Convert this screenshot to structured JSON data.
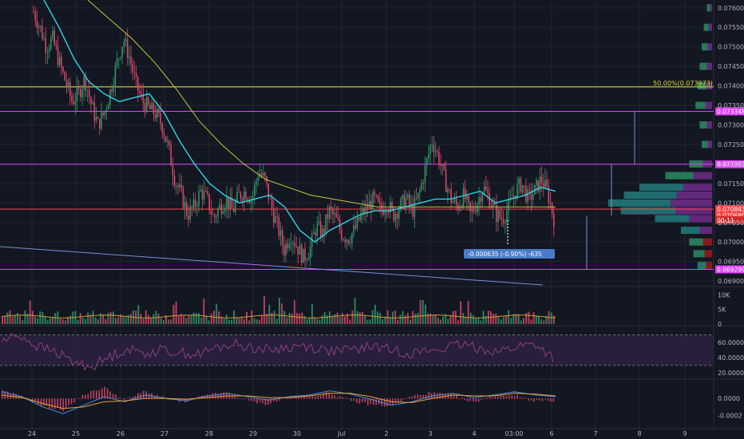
{
  "colors": {
    "background": "#131722",
    "grid": "#1f2433",
    "up": "#2f9c6a",
    "down": "#e0486a",
    "ma_fast": "#2fd4e8",
    "ma_slow": "#c8c63a",
    "magenta": "#e040fb",
    "red_line": "#ff4040",
    "yellow_line": "#e6e64a",
    "trend": "#7b8fd6",
    "rsi_line": "#8d3f86",
    "rsi_band": "#2e2241",
    "macd_line": "#4a90e2",
    "signal_line": "#f0a030",
    "hist": "#e0486a",
    "volume_ma": "#c8a030",
    "measure_box": "#4a7bc8"
  },
  "chart_data": [
    {
      "type": "candlestick",
      "pane": "price",
      "x_tick_labels": [
        "24",
        "25",
        "26",
        "27",
        "28",
        "29",
        "30",
        "Jul",
        "2",
        "3",
        "4",
        "03:00",
        "6",
        "7",
        "8",
        "9"
      ],
      "y_tick_labels": [
        "0.076000",
        "0.075500",
        "0.075000",
        "0.074500",
        "0.074000",
        "0.073500",
        "0.073000",
        "0.072500",
        "0.072000",
        "0.071500",
        "0.071000",
        "0.070500",
        "0.070000",
        "0.069500",
        "0.069000"
      ],
      "ylim": [
        0.0689,
        0.0762
      ],
      "close_approx": [
        0.0759,
        0.0755,
        0.075,
        0.0752,
        0.0746,
        0.0741,
        0.0736,
        0.0738,
        0.0742,
        0.0735,
        0.073,
        0.0733,
        0.0739,
        0.0746,
        0.0752,
        0.0747,
        0.074,
        0.0736,
        0.0734,
        0.0733,
        0.073,
        0.0724,
        0.0716,
        0.0712,
        0.0707,
        0.0709,
        0.0713,
        0.0711,
        0.0706,
        0.0709,
        0.0711,
        0.0708,
        0.0712,
        0.0713,
        0.0711,
        0.0718,
        0.0716,
        0.0709,
        0.0704,
        0.0698,
        0.0702,
        0.0699,
        0.0696,
        0.0698,
        0.0704,
        0.0702,
        0.0708,
        0.0706,
        0.0702,
        0.0701,
        0.0703,
        0.0707,
        0.0709,
        0.0711,
        0.0708,
        0.071,
        0.0707,
        0.0709,
        0.0711,
        0.0708,
        0.0712,
        0.0719,
        0.0726,
        0.0722,
        0.0716,
        0.0711,
        0.0709,
        0.0712,
        0.0707,
        0.071,
        0.0714,
        0.0711,
        0.0707,
        0.0706,
        0.0709,
        0.0713,
        0.0715,
        0.0711,
        0.0713,
        0.0716,
        0.0713,
        0.0706
      ],
      "ma_fast_approx": [
        0.0762,
        0.0755,
        0.0747,
        0.0741,
        0.0738,
        0.0736,
        0.0737,
        0.0738,
        0.0733,
        0.0726,
        0.072,
        0.0715,
        0.0712,
        0.071,
        0.0711,
        0.0712,
        0.0709,
        0.0703,
        0.07,
        0.0703,
        0.0705,
        0.0707,
        0.0708,
        0.0708,
        0.0709,
        0.071,
        0.0711,
        0.0711,
        0.0712,
        0.0713,
        0.071,
        0.0711,
        0.0712,
        0.0714,
        0.0713
      ],
      "ma_slow_approx": [
        0.0762,
        0.0757,
        0.0752,
        0.0746,
        0.0739,
        0.0731,
        0.0725,
        0.072,
        0.0716,
        0.0714,
        0.0712,
        0.0711,
        0.071,
        0.0709,
        0.0709,
        0.0709,
        0.0709,
        0.0709,
        0.0709,
        0.0709,
        0.0709,
        0.0709
      ],
      "horizontal_levels": [
        {
          "value": 0.073973,
          "label": "50.00%(0.073973)",
          "style": "fib"
        },
        {
          "value": 0.073348,
          "label": "0.073348",
          "style": "magenta"
        },
        {
          "value": 0.071993,
          "label": "0.071993",
          "style": "magenta"
        },
        {
          "value": 0.070843,
          "label": "0.070843",
          "style": "red"
        },
        {
          "value": 0.069299,
          "label": "0.069299",
          "style": "magenta"
        }
      ],
      "price_tags": [
        {
          "value": 0.07068,
          "label": "0.070680"
        },
        {
          "value": 0.07056,
          "label": "00:11"
        }
      ],
      "measurement": {
        "label": "-0.000635 (-0.90%) -635",
        "from": 0.07056,
        "to": 0.069925
      },
      "volume_profile": [
        {
          "price": 0.076,
          "size": 0.05
        },
        {
          "price": 0.0755,
          "size": 0.08
        },
        {
          "price": 0.075,
          "size": 0.1
        },
        {
          "price": 0.0745,
          "size": 0.12
        },
        {
          "price": 0.074,
          "size": 0.14
        },
        {
          "price": 0.0735,
          "size": 0.16
        },
        {
          "price": 0.073,
          "size": 0.12
        },
        {
          "price": 0.0725,
          "size": 0.1
        },
        {
          "price": 0.072,
          "size": 0.22
        },
        {
          "price": 0.0717,
          "size": 0.45
        },
        {
          "price": 0.0714,
          "size": 0.7
        },
        {
          "price": 0.0712,
          "size": 0.85
        },
        {
          "price": 0.071,
          "size": 1.0
        },
        {
          "price": 0.0708,
          "size": 0.88
        },
        {
          "price": 0.0706,
          "size": 0.55
        },
        {
          "price": 0.0703,
          "size": 0.3
        },
        {
          "price": 0.07,
          "size": 0.22
        },
        {
          "price": 0.0697,
          "size": 0.18
        },
        {
          "price": 0.0694,
          "size": 0.14
        }
      ]
    },
    {
      "type": "bar",
      "pane": "volume",
      "y_tick_labels": [
        "10K",
        "5K",
        "0"
      ],
      "ylim": [
        0,
        12000
      ]
    },
    {
      "type": "line",
      "pane": "rsi",
      "y_tick_labels": [
        "60.0000",
        "40.0000",
        "20.0000"
      ],
      "ylim": [
        15,
        80
      ],
      "band": [
        30,
        70
      ],
      "values_approx": [
        62,
        70,
        55,
        48,
        35,
        28,
        40,
        52,
        46,
        50,
        47,
        44,
        52,
        58,
        54,
        50,
        53,
        56,
        51,
        48,
        52,
        55,
        50,
        46,
        49,
        53,
        57,
        52,
        48,
        55,
        58,
        40
      ]
    },
    {
      "type": "line",
      "pane": "macd",
      "y_tick_labels": [
        "0.0000",
        "-0.0002"
      ],
      "ylim": [
        -0.00033,
        0.0002
      ],
      "macd_approx": [
        8e-05,
        2e-05,
        -0.0001,
        -0.00018,
        -8e-05,
        2e-05,
        -4e-05,
        4e-05,
        0.0,
        -3e-05,
        3e-05,
        6e-05,
        2e-05,
        -2e-05,
        2e-05,
        4e-05,
        9e-05,
        5e-05,
        -1e-05,
        -8e-05,
        -4e-05,
        3e-05,
        6e-05,
        1e-05,
        4e-05,
        8e-05,
        4e-05,
        2e-05
      ],
      "signal_approx": [
        4e-05,
        1e-05,
        -6e-05,
        -0.00012,
        -0.0001,
        -4e-05,
        -3e-05,
        0.0,
        0.0,
        -1e-05,
        1e-05,
        3e-05,
        3e-05,
        1e-05,
        1e-05,
        3e-05,
        6e-05,
        6e-05,
        2e-05,
        -4e-05,
        -5e-05,
        0.0,
        4e-05,
        3e-05,
        3e-05,
        6e-05,
        5e-05,
        3e-05
      ]
    }
  ]
}
